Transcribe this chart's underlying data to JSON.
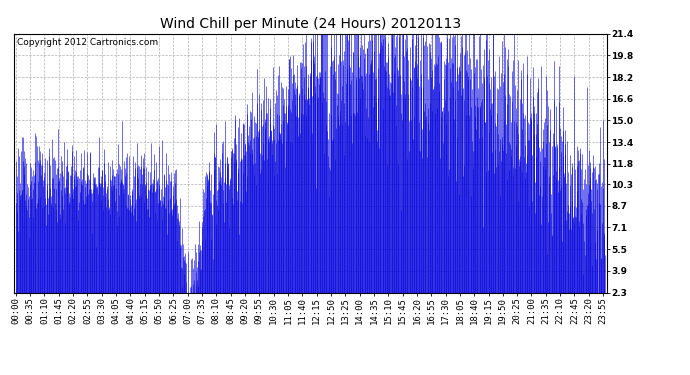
{
  "title": "Wind Chill per Minute (24 Hours) 20120113",
  "copyright": "Copyright 2012 Cartronics.com",
  "yticks": [
    2.3,
    3.9,
    5.5,
    7.1,
    8.7,
    10.3,
    11.8,
    13.4,
    15.0,
    16.6,
    18.2,
    19.8,
    21.4
  ],
  "ylim": [
    2.3,
    21.4
  ],
  "bar_color": "#0000dd",
  "bg_color": "#ffffff",
  "grid_color": "#aaaaaa",
  "title_fontsize": 10,
  "copyright_fontsize": 6.5,
  "tick_fontsize": 6.5,
  "xtick_step_min": 35,
  "n_minutes": 1440,
  "figsize": [
    6.9,
    3.75
  ],
  "dpi": 100
}
